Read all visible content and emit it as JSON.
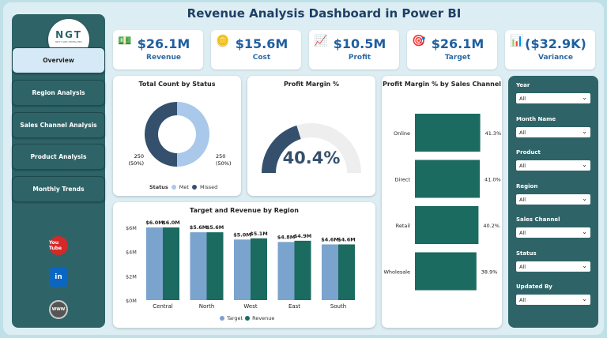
{
  "title": "Revenue Analysis Dashboard in Power BI",
  "logo": {
    "text": "NGT",
    "subtitle": "NEXT GEN TEMPLATES"
  },
  "nav": [
    {
      "label": "Overview",
      "active": true
    },
    {
      "label": "Region Analysis"
    },
    {
      "label": "Sales Channel Analysis"
    },
    {
      "label": "Product Analysis"
    },
    {
      "label": "Monthly Trends"
    }
  ],
  "social": [
    {
      "icon": "youtube-icon",
      "text": "You Tube",
      "color": "#d62828"
    },
    {
      "icon": "linkedin-icon",
      "text": "in",
      "color": "#0a66c2"
    },
    {
      "icon": "globe-icon",
      "text": "WWW",
      "color": "#555"
    }
  ],
  "kpis": [
    {
      "value": "$26.1M",
      "label": "Revenue",
      "icon": "money-icon"
    },
    {
      "value": "$15.6M",
      "label": "Cost",
      "icon": "coins-icon"
    },
    {
      "value": "$10.5M",
      "label": "Profit",
      "icon": "profit-chart-icon"
    },
    {
      "value": "$26.1M",
      "label": "Target",
      "icon": "target-person-icon"
    },
    {
      "value": "($32.9K)",
      "label": "Variance",
      "icon": "variance-person-icon"
    }
  ],
  "colors": {
    "met": "#a9c8ea",
    "missed": "#34506d",
    "target": "#7aa3cd",
    "revenue": "#1b6b60",
    "channel": "#1b6b60",
    "gauge": "#34506d",
    "gauge_bg": "#eeeeee"
  },
  "chart_data": [
    {
      "type": "pie",
      "title": "Total Count by Status",
      "legend_title": "Status",
      "categories": [
        "Met",
        "Missed"
      ],
      "values": [
        250,
        250
      ],
      "labels": [
        "250\n(50%)",
        "250\n(50%)"
      ],
      "legend": "bottom"
    },
    {
      "type": "gauge",
      "title": "Profit Margin %",
      "value": 40.4,
      "display": "40.4%",
      "range": [
        0,
        100
      ]
    },
    {
      "type": "bar",
      "title": "Target and Revenue by Region",
      "categories": [
        "Central",
        "North",
        "West",
        "East",
        "South"
      ],
      "series": [
        {
          "name": "Target",
          "values": [
            6.0,
            5.6,
            5.0,
            4.8,
            4.6
          ],
          "labels": [
            "$6.0M",
            "$5.6M",
            "$5.0M",
            "$4.8M",
            "$4.6M"
          ]
        },
        {
          "name": "Revenue",
          "values": [
            6.0,
            5.6,
            5.1,
            4.9,
            4.6
          ],
          "labels": [
            "$6.0M",
            "$5.6M",
            "$5.1M",
            "$4.9M",
            "$4.6M"
          ]
        }
      ],
      "yticks": [
        "$0M",
        "$2M",
        "$4M",
        "$6M"
      ],
      "ylim": [
        0,
        7
      ],
      "legend": "bottom"
    },
    {
      "type": "bar",
      "orientation": "horizontal",
      "title": "Profit Margin % by Sales Channel",
      "categories": [
        "Online",
        "Direct",
        "Retail",
        "Wholesale"
      ],
      "values": [
        41.3,
        41.0,
        40.2,
        38.9
      ],
      "labels": [
        "41.3%",
        "41.0%",
        "40.2%",
        "38.9%"
      ]
    }
  ],
  "filters": [
    {
      "label": "Year",
      "value": "All"
    },
    {
      "label": "Month Name",
      "value": "All"
    },
    {
      "label": "Product",
      "value": "All"
    },
    {
      "label": "Region",
      "value": "All"
    },
    {
      "label": "Sales Channel",
      "value": "All"
    },
    {
      "label": "Status",
      "value": "All"
    },
    {
      "label": "Updated By",
      "value": "All"
    }
  ]
}
